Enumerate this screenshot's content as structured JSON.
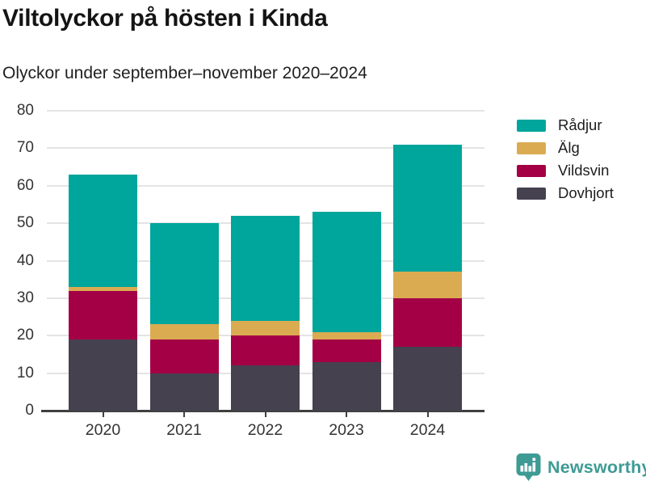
{
  "header": {
    "title": "Viltolyckor på hösten i Kinda",
    "subtitle": "Olyckor under september–november 2020–2024"
  },
  "chart_data": {
    "type": "bar",
    "stacked": true,
    "title": "Viltolyckor på hösten i Kinda",
    "subtitle": "Olyckor under september–november 2020–2024",
    "categories": [
      "2020",
      "2021",
      "2022",
      "2023",
      "2024"
    ],
    "series": [
      {
        "name": "Dovhjort",
        "color": "#45414F",
        "values": [
          19,
          10,
          12,
          13,
          17
        ]
      },
      {
        "name": "Vildsvin",
        "color": "#A30046",
        "values": [
          13,
          9,
          8,
          6,
          13
        ]
      },
      {
        "name": "Älg",
        "color": "#DBAB52",
        "values": [
          1,
          4,
          4,
          2,
          7
        ]
      },
      {
        "name": "Rådjur",
        "color": "#00A59B",
        "values": [
          30,
          27,
          28,
          32,
          34
        ]
      }
    ],
    "totals": [
      63,
      50,
      52,
      53,
      71
    ],
    "xlabel": "",
    "ylabel": "",
    "ylim": [
      0,
      80
    ],
    "yticks": [
      0,
      10,
      20,
      30,
      40,
      50,
      60,
      70,
      80
    ],
    "grid": true,
    "legend_position": "right",
    "legend_order_top_to_bottom": [
      "Rådjur",
      "Älg",
      "Vildsvin",
      "Dovhjort"
    ]
  },
  "footer": {
    "brand": "Newsworthy",
    "brand_color": "#3E9B94"
  },
  "style": {
    "gridline_color": "#E4E4E4",
    "axis_color": "#404040",
    "tick_label_color": "#333333",
    "background": "#ffffff"
  }
}
